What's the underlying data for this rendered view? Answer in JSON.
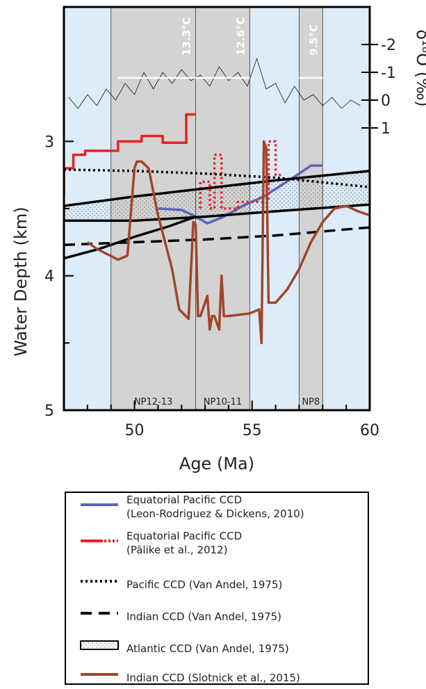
{
  "chart_data": {
    "type": "line",
    "xlabel": "Age (Ma)",
    "ylabel": "Water Depth (km)",
    "y2label": "δ¹⁸O (‰)",
    "xlim": [
      47,
      60
    ],
    "ylim": [
      5,
      2.0
    ],
    "x_ticks": [
      50,
      55,
      60
    ],
    "y_ticks": [
      3,
      4,
      5
    ],
    "y2lim": [
      1.4,
      -2.6
    ],
    "y2_ticks": [
      -2,
      -1,
      0,
      1
    ],
    "grid": false,
    "background_color": "#dcecf8",
    "shaded_intervals": [
      {
        "x0": 49.0,
        "x1": 52.6,
        "label": "NP12-13",
        "temperature": "13.3°C",
        "temp_line": [
          [
            49.3,
            50.3
          ],
          [
            52.6,
            50.5
          ]
        ]
      },
      {
        "x0": 52.6,
        "x1": 54.9,
        "label": "NP10-11",
        "temperature": "12.6°C",
        "temp_line": [
          [
            52.6,
            49.8
          ],
          [
            54.9,
            49.8
          ]
        ]
      },
      {
        "x0": 57.0,
        "x1": 58.0,
        "label": "NP8",
        "temperature": "9.5°C",
        "temp_line": [
          [
            57.0,
            50.1
          ],
          [
            58.0,
            50.1
          ]
        ]
      }
    ],
    "series": [
      {
        "name": "Equatorial Pacific CCD (Leon-Rodriguez & Dickens, 2010)",
        "color": "#5a63b5",
        "style": "solid",
        "width": 3.5,
        "x": [
          51.0,
          52.0,
          52.6,
          53.1,
          53.8,
          54.6,
          55.5,
          56.3,
          57.0,
          57.5,
          58.0
        ],
        "y": [
          3.5,
          3.51,
          3.56,
          3.61,
          3.56,
          3.48,
          3.41,
          3.32,
          3.24,
          3.18,
          3.18
        ]
      },
      {
        "name": "Equatorial Pacific CCD (Pälike et al., 2012)",
        "color": "#e8211f",
        "style": "solid",
        "width": 3.5,
        "x": [
          47.0,
          47.0,
          47.4,
          47.4,
          47.9,
          47.9,
          49.3,
          49.3,
          50.3,
          50.3,
          51.2,
          51.2,
          52.2,
          52.2,
          52.6,
          52.6
        ],
        "y": [
          3.4,
          3.2,
          3.2,
          3.1,
          3.1,
          3.07,
          3.07,
          3.0,
          3.0,
          2.96,
          2.96,
          3.01,
          3.01,
          2.8,
          2.8,
          2.8
        ]
      },
      {
        "name": "Equatorial Pacific CCD (Pälike et al., 2012) dashed",
        "color": "#e8211f",
        "style": "dotted",
        "width": 3.5,
        "x": [
          52.8,
          52.8,
          53.2,
          53.2,
          53.4,
          53.4,
          53.7,
          53.7,
          54.4,
          54.4,
          55.7,
          55.7,
          56.0,
          56.0,
          56.3
        ],
        "y": [
          3.5,
          3.3,
          3.3,
          3.5,
          3.5,
          3.1,
          3.1,
          3.5,
          3.5,
          3.45,
          3.45,
          3.0,
          3.0,
          3.25,
          3.25
        ]
      },
      {
        "name": "Pacific CCD (Van Andel, 1975)",
        "color": "#000000",
        "style": "dotted",
        "width": 3.5,
        "x": [
          47.0,
          50.0,
          53.0,
          56.0,
          60.0
        ],
        "y": [
          3.21,
          3.22,
          3.24,
          3.27,
          3.34
        ]
      },
      {
        "name": "Indian CCD (Van Andel, 1975)",
        "color": "#000000",
        "style": "dashed",
        "width": 3.5,
        "x": [
          47.0,
          50.0,
          53.0,
          56.0,
          60.0
        ],
        "y": [
          3.77,
          3.75,
          3.73,
          3.7,
          3.64
        ]
      },
      {
        "name": "Atlantic CCD (Van Andel, 1975) upper",
        "color": "#000000",
        "style": "solid",
        "width": 3.5,
        "x": [
          47.0,
          50.0,
          53.0,
          56.0,
          60.0
        ],
        "y": [
          3.48,
          3.41,
          3.35,
          3.29,
          3.22
        ]
      },
      {
        "name": "Atlantic CCD (Van Andel, 1975) lower",
        "color": "#000000",
        "style": "solid",
        "width": 3.5,
        "x": [
          47.0,
          50.0,
          53.0,
          56.0,
          60.0
        ],
        "y": [
          3.59,
          3.59,
          3.56,
          3.52,
          3.47
        ]
      },
      {
        "name": "Atlantic CCD (Van Andel, 1975) young limb",
        "color": "#000000",
        "style": "solid",
        "width": 3.5,
        "x": [
          47.0,
          48.5,
          50.0,
          51.5,
          52.6
        ],
        "y": [
          3.87,
          3.8,
          3.71,
          3.63,
          3.56
        ]
      },
      {
        "name": "Indian CCD (Slotnick et al., 2015)",
        "color": "#a0452b",
        "style": "solid",
        "width": 3.5,
        "x": [
          48.0,
          48.4,
          49.3,
          49.7,
          50.0,
          50.1,
          50.3,
          50.6,
          51.0,
          51.6,
          51.9,
          52.3,
          52.5,
          52.6,
          52.7,
          52.8,
          53.1,
          53.2,
          53.3,
          53.4,
          53.6,
          53.7,
          53.8,
          54.0,
          54.9,
          55.3,
          55.4,
          55.5,
          55.6,
          55.7,
          56.0,
          56.5,
          57.0,
          57.5,
          58.0,
          58.5,
          59.0,
          59.5,
          60.0
        ],
        "y": [
          3.75,
          3.8,
          3.88,
          3.85,
          3.2,
          3.15,
          3.15,
          3.2,
          3.55,
          3.95,
          4.25,
          4.32,
          3.6,
          3.62,
          4.3,
          4.3,
          4.15,
          4.4,
          4.3,
          4.3,
          4.4,
          4.0,
          4.3,
          4.3,
          4.28,
          4.25,
          4.5,
          3.0,
          3.05,
          4.2,
          4.2,
          4.1,
          3.95,
          3.75,
          3.6,
          3.5,
          3.48,
          3.52,
          3.55
        ]
      },
      {
        "name": "δ18O",
        "color": "#111111",
        "style": "solid",
        "width": 0.8,
        "x": [
          47.2,
          47.6,
          48.0,
          48.4,
          48.8,
          49.2,
          49.6,
          50.0,
          50.4,
          50.8,
          51.2,
          51.6,
          52.0,
          52.4,
          52.8,
          53.2,
          53.6,
          54.0,
          54.4,
          54.8,
          55.2,
          55.6,
          56.0,
          56.4,
          56.8,
          57.2,
          57.6,
          58.0,
          58.4,
          58.8,
          59.2,
          59.6
        ],
        "y": [
          -0.1,
          0.3,
          -0.2,
          0.2,
          -0.4,
          0.0,
          -0.6,
          -0.2,
          -1.0,
          -0.4,
          -1.0,
          -0.6,
          -1.1,
          -0.7,
          -0.9,
          -0.5,
          -1.2,
          -0.7,
          -1.0,
          -0.5,
          -1.5,
          -0.4,
          -0.6,
          0.1,
          -0.5,
          0.0,
          -0.2,
          0.2,
          -0.1,
          0.3,
          0.0,
          0.2
        ]
      }
    ],
    "atlantic_band": {
      "upper": "Atlantic CCD (Van Andel, 1975) upper",
      "lower": "Atlantic CCD (Van Andel, 1975) lower"
    },
    "legend_position": "bottom",
    "legend": [
      {
        "symbol": "line-blue",
        "text": [
          "Equatorial Pacific CCD",
          "(Leon-Rodriguez & Dickens, 2010)"
        ]
      },
      {
        "symbol": "line-red-dash",
        "text": [
          "Equatorial Pacific CCD",
          "(Pälike et al., 2012)"
        ]
      },
      {
        "symbol": "dotted-black",
        "text": [
          "Pacific CCD (Van Andel, 1975)"
        ]
      },
      {
        "symbol": "dashed-black",
        "text": [
          "Indian CCD (Van Andel, 1975)"
        ]
      },
      {
        "symbol": "box-atlantic",
        "text": [
          "Atlantic CCD (Van Andel, 1975)"
        ]
      },
      {
        "symbol": "line-brown",
        "text": [
          "Indian CCD (Slotnick et al., 2015)"
        ]
      }
    ]
  }
}
